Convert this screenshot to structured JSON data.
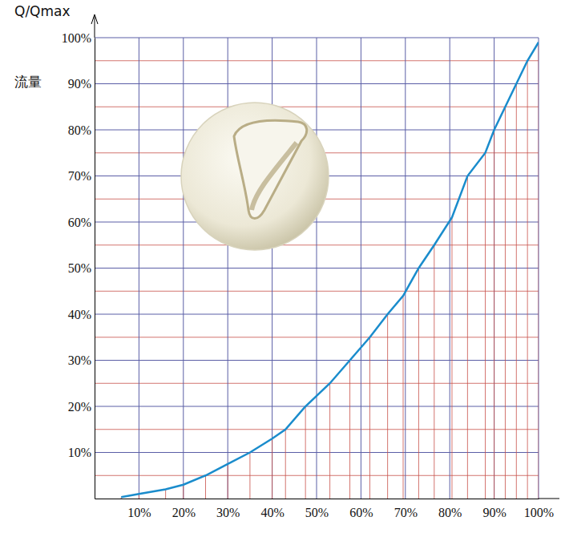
{
  "chart_data": {
    "type": "line",
    "y_label": "Q/Qmax",
    "annotations": [
      "流量"
    ],
    "x": [
      6,
      10,
      16,
      20,
      25,
      30,
      35,
      40,
      43,
      47.5,
      53,
      57.5,
      62,
      66,
      69.5,
      73,
      76.5,
      80.5,
      84,
      88,
      90,
      92.5,
      95,
      97.5,
      100
    ],
    "values": [
      0.3,
      1,
      2,
      3,
      5,
      7.5,
      10,
      13,
      15,
      20,
      25,
      30,
      35,
      40,
      44,
      50,
      55,
      61,
      70,
      75,
      80,
      85,
      90,
      95,
      99
    ],
    "color": "#1a8ccc",
    "line_style": "solid",
    "xlim": [
      0,
      100
    ],
    "xticks": [
      {
        "value": 10,
        "label": "10%"
      },
      {
        "value": 20,
        "label": "20%"
      },
      {
        "value": 30,
        "label": "30%"
      },
      {
        "value": 40,
        "label": "40%"
      },
      {
        "value": 50,
        "label": "50%"
      },
      {
        "value": 60,
        "label": "60%"
      },
      {
        "value": 70,
        "label": "70%"
      },
      {
        "value": 80,
        "label": "80%"
      },
      {
        "value": 90,
        "label": "90%"
      },
      {
        "value": 100,
        "label": "100%"
      }
    ],
    "ylim": [
      0,
      100
    ],
    "yticks": [
      {
        "value": 10,
        "label": "10%"
      },
      {
        "value": 20,
        "label": "20%"
      },
      {
        "value": 30,
        "label": "30%"
      },
      {
        "value": 40,
        "label": "40%"
      },
      {
        "value": 50,
        "label": "50%"
      },
      {
        "value": 60,
        "label": "60%"
      },
      {
        "value": 70,
        "label": "70%"
      },
      {
        "value": 80,
        "label": "80%"
      },
      {
        "value": 90,
        "label": "90%"
      },
      {
        "value": 100,
        "label": "100%"
      }
    ],
    "minor_yticks": [
      5,
      15,
      25,
      35,
      45,
      55,
      65,
      75,
      85,
      95
    ],
    "grid": true
  }
}
